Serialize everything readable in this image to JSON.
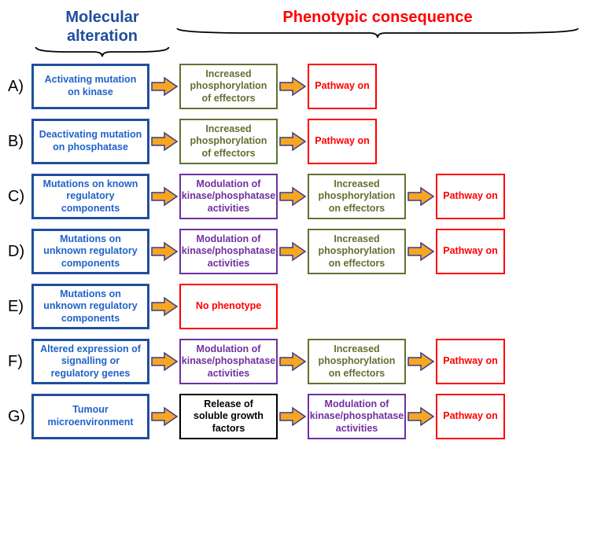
{
  "headers": {
    "molecular": {
      "text": "Molecular alteration",
      "color": "#1f4e9e"
    },
    "phenotypic": {
      "text": "Phenotypic consequence",
      "color": "#ff0000"
    }
  },
  "arrow": {
    "fill": "#f5a623",
    "stroke": "#3a3a8a",
    "stroke_width": 1.5
  },
  "brace": {
    "stroke": "#000000",
    "stroke_width": 1.8
  },
  "rows": [
    {
      "label": "A)",
      "boxes": [
        {
          "cls": "box-blue",
          "text": "Activating mutation on kinase"
        },
        {
          "cls": "box-green",
          "text": "Increased phosphorylation of effectors"
        },
        {
          "cls": "box-red",
          "text": "Pathway on"
        }
      ]
    },
    {
      "label": "B)",
      "boxes": [
        {
          "cls": "box-blue",
          "text": "Deactivating mutation on phosphatase"
        },
        {
          "cls": "box-green",
          "text": "Increased phosphorylation of effectors"
        },
        {
          "cls": "box-red",
          "text": "Pathway on"
        }
      ]
    },
    {
      "label": "C)",
      "boxes": [
        {
          "cls": "box-blue",
          "text": "Mutations on known regulatory components"
        },
        {
          "cls": "box-purple",
          "text": "Modulation of kinase/phosphatase activities"
        },
        {
          "cls": "box-green",
          "text": "Increased phosphorylation on effectors"
        },
        {
          "cls": "box-red",
          "text": "Pathway on"
        }
      ]
    },
    {
      "label": "D)",
      "boxes": [
        {
          "cls": "box-blue",
          "text": "Mutations on unknown  regulatory components"
        },
        {
          "cls": "box-purple",
          "text": "Modulation of kinase/phosphatase activities"
        },
        {
          "cls": "box-green",
          "text": "Increased phosphorylation on effectors"
        },
        {
          "cls": "box-red",
          "text": "Pathway on"
        }
      ]
    },
    {
      "label": "E)",
      "boxes": [
        {
          "cls": "box-blue",
          "text": "Mutations on unknown  regulatory components"
        },
        {
          "cls": "box-red-wide",
          "text": "No phenotype"
        }
      ]
    },
    {
      "label": "F)",
      "boxes": [
        {
          "cls": "box-blue",
          "text": "Altered expression of signalling or regulatory  genes"
        },
        {
          "cls": "box-purple",
          "text": "Modulation of kinase/phosphatase activities"
        },
        {
          "cls": "box-green",
          "text": "Increased phosphorylation on effectors"
        },
        {
          "cls": "box-red",
          "text": "Pathway on"
        }
      ]
    },
    {
      "label": "G)",
      "boxes": [
        {
          "cls": "box-blue",
          "text": "Tumour microenvironment"
        },
        {
          "cls": "box-black",
          "text": "Release of soluble growth factors"
        },
        {
          "cls": "box-purple",
          "text": "Modulation of kinase/phosphatase activities"
        },
        {
          "cls": "box-red",
          "text": "Pathway on"
        }
      ]
    }
  ]
}
